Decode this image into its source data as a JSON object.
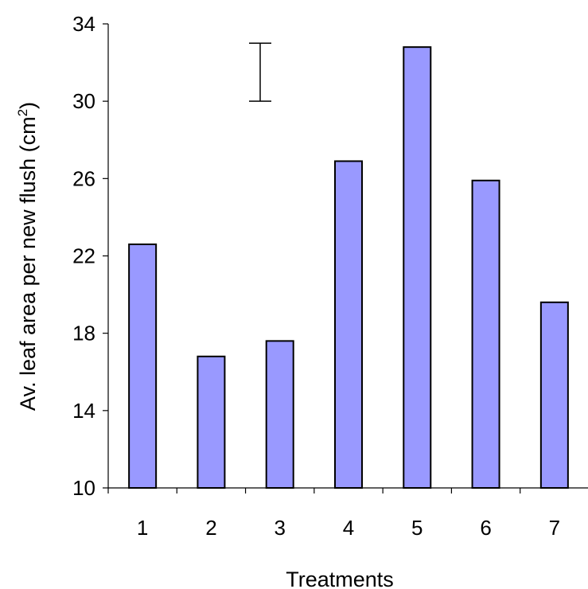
{
  "chart_data": {
    "type": "bar",
    "categories": [
      "1",
      "2",
      "3",
      "4",
      "5",
      "6",
      "7"
    ],
    "values": [
      22.6,
      16.8,
      17.6,
      26.9,
      32.8,
      25.9,
      19.6
    ],
    "xlabel": "Treatments",
    "ylabel": "Av. leaf area per new flush (cm",
    "ylabel_superscript": "2",
    "ylabel_suffix": ")",
    "ylim": [
      10,
      34
    ],
    "yticks": [
      "10",
      "14",
      "18",
      "22",
      "26",
      "30",
      "34"
    ],
    "error_bar": {
      "low": 30,
      "high": 33
    },
    "grid": false,
    "legend": false,
    "colors": {
      "bar_fill": "#9999ff",
      "bar_stroke": "#000000",
      "axis": "#000000"
    }
  }
}
